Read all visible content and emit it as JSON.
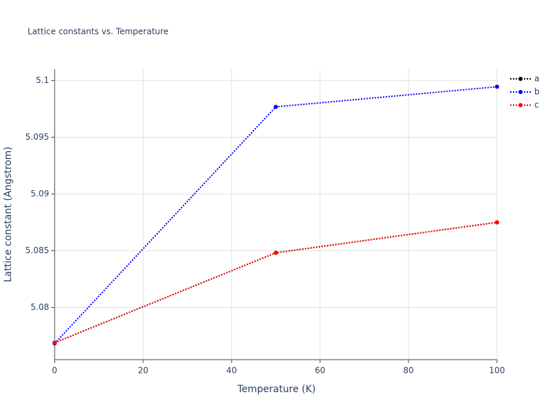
{
  "chart_data": {
    "type": "line",
    "title": "Lattice constants vs. Temperature",
    "x_label": "Temperature (K)",
    "y_label": "Lattice constant (Angstrom)",
    "x": [
      0,
      50,
      100
    ],
    "series": [
      {
        "name": "a",
        "color": "#000000",
        "values": [
          5.07689,
          5.08482,
          5.0875
        ]
      },
      {
        "name": "b",
        "color": "#0000ff",
        "values": [
          5.07683,
          5.09768,
          5.09945
        ]
      },
      {
        "name": "c",
        "color": "#ff0000",
        "values": [
          5.07689,
          5.08482,
          5.0875
        ]
      }
    ],
    "xlim": [
      0,
      100
    ],
    "xticks": [
      0,
      20,
      40,
      60,
      80,
      100
    ],
    "ylim": [
      5.0754,
      5.101
    ],
    "yticks": [
      5.08,
      5.085,
      5.09,
      5.095,
      5.1
    ],
    "grid": true,
    "legend": "right"
  }
}
